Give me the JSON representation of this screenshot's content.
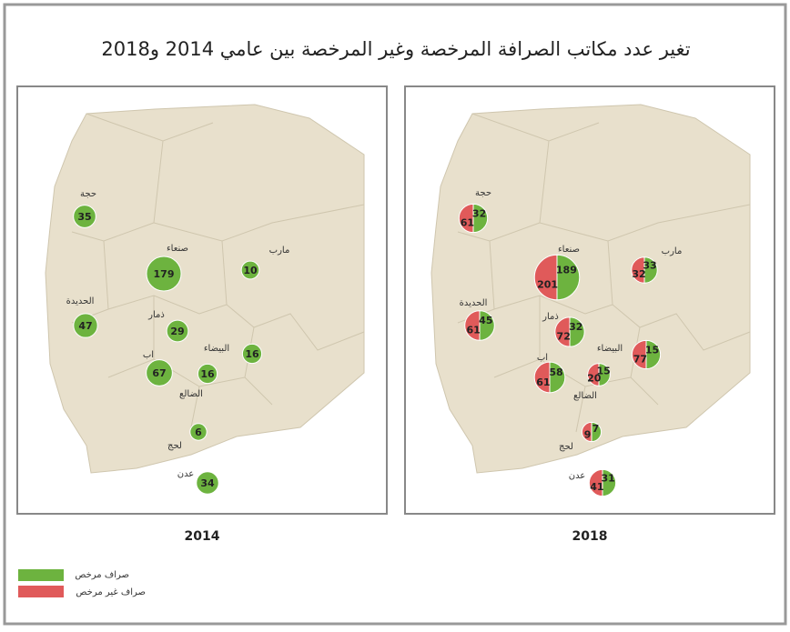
{
  "title": "تغير عدد مكاتب الصرافة المرخصة وغير المرخصة بين عامي 2014 و2018",
  "colors": {
    "licensed": "#6db33f",
    "unlicensed": "#e05a5a"
  },
  "legend": {
    "licensed": "صراف مرخص",
    "unlicensed": "صراف غير مرخص"
  },
  "maps": [
    {
      "year": "2014",
      "places": [
        "حجة",
        "صنعاء",
        "مارب",
        "الحديدة",
        "ذمار",
        "البيضاء",
        "اب",
        "الضالع",
        "لحج",
        "عدن"
      ],
      "points": [
        {
          "licensed": 35
        },
        {
          "licensed": 179
        },
        {
          "licensed": 10
        },
        {
          "licensed": 47
        },
        {
          "licensed": 29
        },
        {
          "licensed": 16
        },
        {
          "licensed": 67
        },
        {
          "licensed": 16
        },
        {
          "licensed": 6
        },
        {
          "licensed": 34
        }
      ]
    },
    {
      "year": "2018",
      "places": [
        "حجة",
        "صنعاء",
        "مارب",
        "الحديدة",
        "ذمار",
        "البيضاء",
        "اب",
        "الضالع",
        "لحج",
        "عدن"
      ],
      "points": [
        {
          "licensed": 32,
          "unlicensed": 61
        },
        {
          "licensed": 189,
          "unlicensed": 201
        },
        {
          "licensed": 33,
          "unlicensed": 32
        },
        {
          "licensed": 45,
          "unlicensed": 61
        },
        {
          "licensed": 32,
          "unlicensed": 72
        },
        {
          "licensed": 15,
          "unlicensed": 77
        },
        {
          "licensed": 58,
          "unlicensed": 61
        },
        {
          "licensed": 15,
          "unlicensed": 20
        },
        {
          "licensed": 7,
          "unlicensed": 9
        },
        {
          "licensed": 31,
          "unlicensed": 41
        }
      ]
    }
  ]
}
